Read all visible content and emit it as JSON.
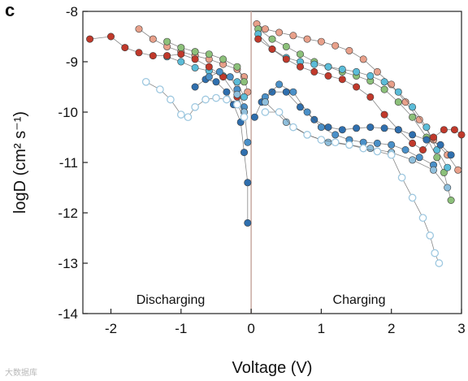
{
  "panel_label": "c",
  "watermark": "大数据库",
  "chart_data": {
    "type": "scatter",
    "title": "",
    "xlabel": "Voltage (V)",
    "ylabel": "logD (cm² s⁻¹)",
    "xlim": [
      -2.4,
      3
    ],
    "ylim": [
      -14,
      -8
    ],
    "x_ticks": [
      "-2",
      "-1",
      "0",
      "1",
      "2",
      "3"
    ],
    "y_ticks": [
      "-8",
      "-9",
      "-10",
      "-11",
      "-12",
      "-13",
      "-14"
    ],
    "x_tick_values": [
      -2,
      -1,
      0,
      1,
      2,
      3
    ],
    "y_tick_values": [
      -8,
      -9,
      -10,
      -11,
      -12,
      -13,
      -14
    ],
    "grid": false,
    "vertical_reference_line": 0,
    "annotations": [
      "Discharging",
      "Charging"
    ],
    "series": [
      {
        "color": "#e8a08a",
        "marker": "filled",
        "discharge": [
          [
            -1.6,
            -8.35
          ],
          [
            -1.4,
            -8.55
          ],
          [
            -1.2,
            -8.7
          ],
          [
            -1.0,
            -8.8
          ],
          [
            -0.8,
            -8.88
          ],
          [
            -0.6,
            -8.95
          ],
          [
            -0.4,
            -9.05
          ],
          [
            -0.2,
            -9.15
          ],
          [
            -0.1,
            -9.3
          ],
          [
            -0.05,
            -9.6
          ]
        ],
        "charge": [
          [
            0.08,
            -8.25
          ],
          [
            0.2,
            -8.35
          ],
          [
            0.4,
            -8.42
          ],
          [
            0.6,
            -8.48
          ],
          [
            0.8,
            -8.55
          ],
          [
            1.0,
            -8.6
          ],
          [
            1.2,
            -8.68
          ],
          [
            1.4,
            -8.78
          ],
          [
            1.6,
            -8.95
          ],
          [
            1.8,
            -9.2
          ],
          [
            2.0,
            -9.45
          ],
          [
            2.2,
            -9.8
          ],
          [
            2.4,
            -10.15
          ],
          [
            2.6,
            -10.55
          ],
          [
            2.8,
            -10.85
          ],
          [
            2.95,
            -11.15
          ]
        ]
      },
      {
        "color": "#8cc07a",
        "marker": "filled",
        "discharge": [
          [
            -1.2,
            -8.6
          ],
          [
            -1.0,
            -8.72
          ],
          [
            -0.8,
            -8.8
          ],
          [
            -0.6,
            -8.85
          ],
          [
            -0.4,
            -8.95
          ],
          [
            -0.2,
            -9.1
          ],
          [
            -0.1,
            -9.4
          ]
        ],
        "charge": [
          [
            0.1,
            -8.35
          ],
          [
            0.3,
            -8.55
          ],
          [
            0.5,
            -8.7
          ],
          [
            0.7,
            -8.85
          ],
          [
            0.9,
            -9.0
          ],
          [
            1.1,
            -9.1
          ],
          [
            1.3,
            -9.2
          ],
          [
            1.5,
            -9.28
          ],
          [
            1.7,
            -9.38
          ],
          [
            1.9,
            -9.55
          ],
          [
            2.1,
            -9.8
          ],
          [
            2.3,
            -10.1
          ],
          [
            2.5,
            -10.5
          ],
          [
            2.65,
            -10.9
          ],
          [
            2.75,
            -11.2
          ],
          [
            2.85,
            -11.75
          ]
        ]
      },
      {
        "color": "#5bbcd8",
        "marker": "filled",
        "discharge": [
          [
            -1.2,
            -8.9
          ],
          [
            -1.0,
            -9.0
          ],
          [
            -0.8,
            -9.12
          ],
          [
            -0.6,
            -9.18
          ],
          [
            -0.4,
            -9.28
          ],
          [
            -0.2,
            -9.4
          ],
          [
            -0.1,
            -9.7
          ]
        ],
        "charge": [
          [
            0.1,
            -8.45
          ],
          [
            0.3,
            -8.75
          ],
          [
            0.5,
            -8.92
          ],
          [
            0.7,
            -9.0
          ],
          [
            0.9,
            -9.05
          ],
          [
            1.1,
            -9.1
          ],
          [
            1.3,
            -9.15
          ],
          [
            1.5,
            -9.2
          ],
          [
            1.7,
            -9.28
          ],
          [
            1.9,
            -9.4
          ],
          [
            2.1,
            -9.6
          ],
          [
            2.3,
            -9.9
          ],
          [
            2.5,
            -10.3
          ],
          [
            2.65,
            -10.75
          ],
          [
            2.8,
            -11.1
          ]
        ]
      },
      {
        "color": "#c0392b",
        "marker": "filled",
        "discharge": [
          [
            -2.3,
            -8.55
          ],
          [
            -2.0,
            -8.5
          ],
          [
            -1.8,
            -8.72
          ],
          [
            -1.6,
            -8.82
          ],
          [
            -1.4,
            -8.88
          ],
          [
            -1.2,
            -8.88
          ],
          [
            -1.0,
            -8.85
          ],
          [
            -0.8,
            -8.95
          ],
          [
            -0.6,
            -9.1
          ],
          [
            -0.4,
            -9.3
          ],
          [
            -0.2,
            -9.7
          ],
          [
            -0.1,
            -10.0
          ]
        ],
        "charge": [
          [
            0.1,
            -8.55
          ],
          [
            0.3,
            -8.75
          ],
          [
            0.5,
            -8.95
          ],
          [
            0.7,
            -9.1
          ],
          [
            0.9,
            -9.2
          ],
          [
            1.1,
            -9.28
          ],
          [
            1.3,
            -9.35
          ],
          [
            1.5,
            -9.5
          ],
          [
            1.7,
            -9.7
          ],
          [
            1.9,
            -10.05
          ],
          [
            2.1,
            -10.35
          ],
          [
            2.3,
            -10.62
          ],
          [
            2.45,
            -10.75
          ],
          [
            2.6,
            -10.5
          ],
          [
            2.75,
            -10.35
          ],
          [
            2.9,
            -10.35
          ],
          [
            3.0,
            -10.45
          ]
        ]
      },
      {
        "color": "#2f6fae",
        "marker": "filled",
        "discharge": [
          [
            -0.8,
            -9.5
          ],
          [
            -0.65,
            -9.35
          ],
          [
            -0.5,
            -9.4
          ],
          [
            -0.35,
            -9.6
          ],
          [
            -0.25,
            -9.85
          ],
          [
            -0.15,
            -10.2
          ],
          [
            -0.1,
            -10.8
          ],
          [
            -0.05,
            -11.4
          ],
          [
            -0.05,
            -12.2
          ]
        ],
        "charge": [
          [
            0.05,
            -10.1
          ],
          [
            0.15,
            -9.8
          ],
          [
            0.3,
            -9.6
          ],
          [
            0.5,
            -9.6
          ],
          [
            0.7,
            -9.9
          ],
          [
            0.9,
            -10.15
          ],
          [
            1.1,
            -10.3
          ],
          [
            1.3,
            -10.35
          ],
          [
            1.5,
            -10.32
          ],
          [
            1.7,
            -10.3
          ],
          [
            1.9,
            -10.32
          ],
          [
            2.1,
            -10.35
          ],
          [
            2.3,
            -10.45
          ],
          [
            2.5,
            -10.55
          ],
          [
            2.7,
            -10.65
          ],
          [
            2.85,
            -10.85
          ]
        ]
      },
      {
        "color": "#4a90c8",
        "marker": "filled",
        "discharge": [
          [
            -0.6,
            -9.3
          ],
          [
            -0.45,
            -9.2
          ],
          [
            -0.3,
            -9.3
          ],
          [
            -0.2,
            -9.55
          ],
          [
            -0.1,
            -9.9
          ],
          [
            -0.05,
            -10.6
          ]
        ],
        "charge": [
          [
            0.2,
            -9.7
          ],
          [
            0.4,
            -9.45
          ],
          [
            0.6,
            -9.6
          ],
          [
            0.8,
            -10.0
          ],
          [
            1.0,
            -10.3
          ],
          [
            1.2,
            -10.45
          ],
          [
            1.4,
            -10.55
          ],
          [
            1.6,
            -10.6
          ],
          [
            1.8,
            -10.62
          ],
          [
            2.0,
            -10.65
          ],
          [
            2.2,
            -10.75
          ],
          [
            2.4,
            -10.9
          ],
          [
            2.6,
            -11.05
          ]
        ]
      },
      {
        "color": "#8fbfdc",
        "marker": "filled",
        "discharge": [
          [
            -0.2,
            -9.65
          ],
          [
            -0.1,
            -10.0
          ]
        ],
        "charge": [
          [
            0.2,
            -9.8
          ],
          [
            0.5,
            -10.2
          ],
          [
            0.8,
            -10.45
          ],
          [
            1.1,
            -10.6
          ],
          [
            1.4,
            -10.65
          ],
          [
            1.7,
            -10.72
          ],
          [
            2.0,
            -10.8
          ],
          [
            2.3,
            -10.95
          ],
          [
            2.6,
            -11.15
          ],
          [
            2.8,
            -11.5
          ]
        ]
      },
      {
        "color": "#9ec8e0",
        "marker": "open",
        "discharge": [
          [
            -1.5,
            -9.4
          ],
          [
            -1.3,
            -9.55
          ],
          [
            -1.15,
            -9.75
          ],
          [
            -1.0,
            -10.05
          ],
          [
            -0.9,
            -10.1
          ],
          [
            -0.8,
            -9.9
          ],
          [
            -0.65,
            -9.75
          ],
          [
            -0.5,
            -9.72
          ],
          [
            -0.35,
            -9.75
          ],
          [
            -0.2,
            -9.85
          ],
          [
            -0.1,
            -10.1
          ]
        ],
        "charge": [
          [
            0.2,
            -10.0
          ],
          [
            0.4,
            -10.0
          ],
          [
            0.6,
            -10.3
          ],
          [
            0.8,
            -10.45
          ],
          [
            1.0,
            -10.55
          ],
          [
            1.2,
            -10.6
          ],
          [
            1.4,
            -10.65
          ],
          [
            1.6,
            -10.72
          ],
          [
            1.8,
            -10.78
          ],
          [
            2.0,
            -10.85
          ],
          [
            2.15,
            -11.3
          ],
          [
            2.3,
            -11.7
          ],
          [
            2.45,
            -12.1
          ],
          [
            2.55,
            -12.45
          ],
          [
            2.62,
            -12.8
          ],
          [
            2.68,
            -13.0
          ]
        ]
      }
    ]
  }
}
